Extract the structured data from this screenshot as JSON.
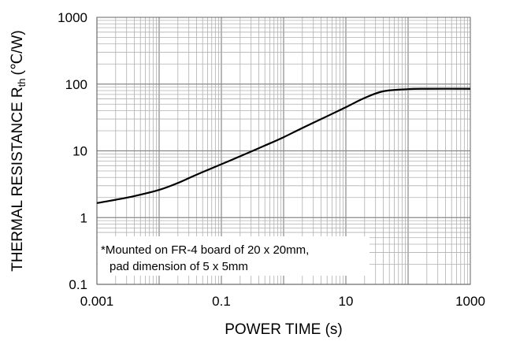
{
  "chart_data": {
    "type": "line",
    "x_scale": "log",
    "y_scale": "log",
    "xlim": [
      0.001,
      1000
    ],
    "ylim": [
      0.1,
      1000
    ],
    "grid": true,
    "xlabel": "POWER TIME (s)",
    "ylabel": {
      "main": "THERMAL RESISTANCE R",
      "subscript": "th",
      "unit": "(℃/W)"
    },
    "x_tick_labels": [
      "0.001",
      "0.1",
      "10",
      "1000"
    ],
    "y_tick_labels": [
      "1000",
      "100",
      "10",
      "1",
      "0.1"
    ],
    "annotation": {
      "line1": "*Mounted on FR-4 board of 20 x 20mm,",
      "line2": "pad dimension of 5 x 5mm"
    },
    "series": [
      {
        "x": [
          0.001,
          0.002,
          0.004,
          0.01,
          0.02,
          0.04,
          0.1,
          0.2,
          0.5,
          1,
          2,
          5,
          10,
          20,
          40,
          100,
          200,
          1000
        ],
        "y": [
          1.65,
          1.85,
          2.1,
          2.6,
          3.3,
          4.4,
          6.3,
          8.3,
          12,
          16,
          22,
          33,
          45,
          62,
          78,
          84,
          85,
          85
        ]
      }
    ]
  }
}
